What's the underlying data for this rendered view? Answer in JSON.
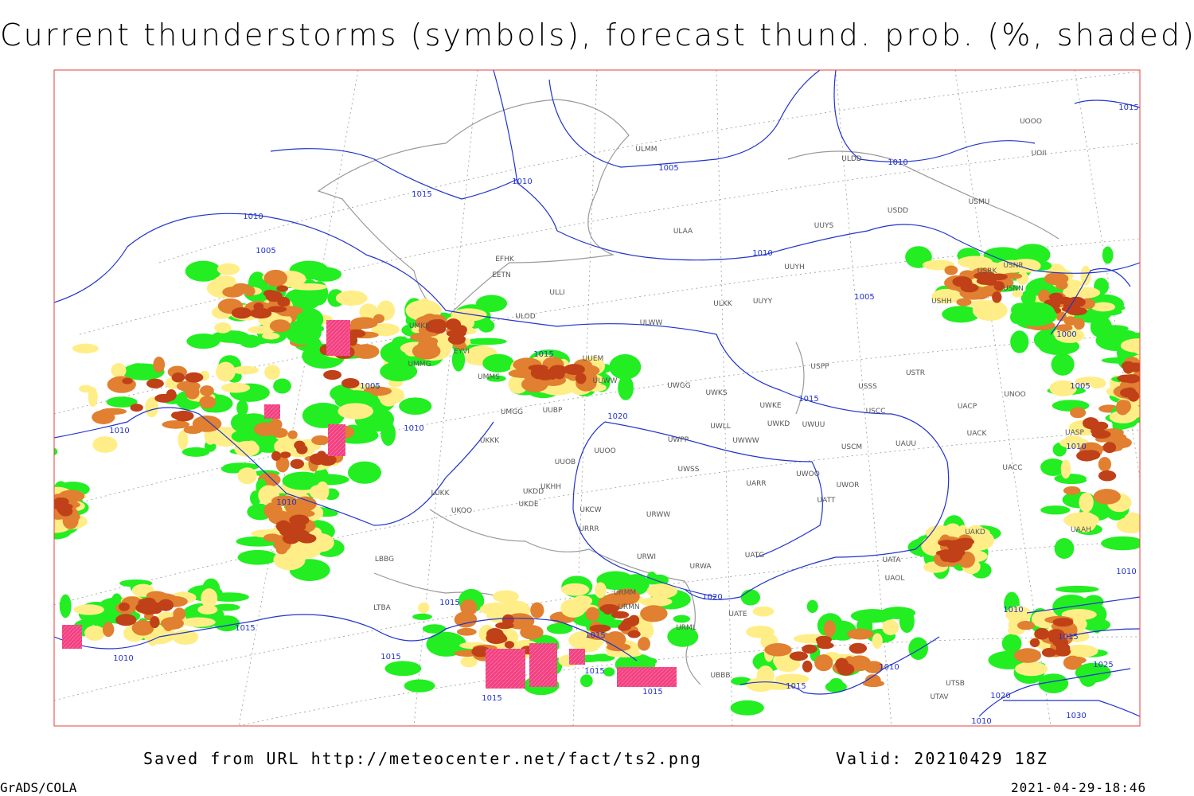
{
  "header": {
    "title": "Current thunderstorms (symbols), forecast thund. prob. (%, shaded)"
  },
  "isobar_labels": [
    1015,
    1005,
    1010,
    1010,
    1015,
    1010,
    1005,
    1010,
    1005,
    1000,
    1015,
    1005,
    1005,
    1015,
    1020,
    1010,
    1010,
    1010,
    1010,
    1015,
    1020,
    1010,
    1010,
    1015,
    1015,
    1015,
    1010,
    1015,
    1010,
    1025,
    1015,
    1015,
    1015,
    1015,
    1020,
    1010,
    1030
  ],
  "station_labels": [
    "UOOO",
    "UOII",
    "ULDD",
    "USMU",
    "USDD",
    "UUYS",
    "ULAA",
    "ULMM",
    "UUYH",
    "USRK",
    "USNR",
    "USNN",
    "USHH",
    "ULKK",
    "UUYY",
    "ULWW",
    "ULOD",
    "EFHK",
    "EETN",
    "ULLI",
    "UUEM",
    "UUWW",
    "UWGG",
    "UWKS",
    "USPP",
    "USSS",
    "USTR",
    "UNOO",
    "UWKE",
    "UWKD",
    "UWUU",
    "USCC",
    "UACP",
    "USCM",
    "UAUU",
    "UACK",
    "UASP",
    "UWPP",
    "UWLL",
    "UWWW",
    "UUBP",
    "UMGG",
    "UMMS",
    "UUOO",
    "UUOB",
    "UKKK",
    "UWSS",
    "UARR",
    "UWOO",
    "UWOR",
    "UATT",
    "UACC",
    "UKHH",
    "UKDD",
    "UKDE",
    "UKOO",
    "LUKK",
    "UKCW",
    "URWW",
    "URRR",
    "UAKD",
    "UAAH",
    "URWI",
    "URWA",
    "UATG",
    "UATA",
    "UAOL",
    "URMM",
    "URMN",
    "UATE",
    "URML",
    "UBBB",
    "UTSB",
    "UTAV",
    "LTBA",
    "LBBG",
    "UMKK",
    "UMMG",
    "EYVI"
  ],
  "footer": {
    "source": "Saved from URL http://meteocenter.net/fact/ts2.png",
    "valid": "Valid: 20210429 18Z",
    "software": "GrADS/COLA",
    "timestamp": "2021-04-29-18:46"
  }
}
